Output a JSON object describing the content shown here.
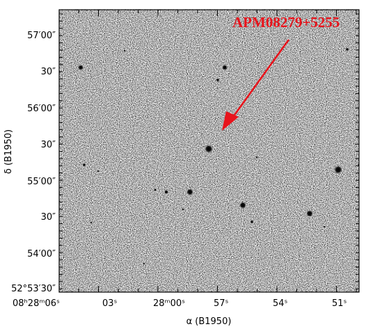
{
  "figure": {
    "target_label": "APM08279+5255",
    "x_axis_title": "α (B1950)",
    "y_axis_title": "δ (B1950)",
    "x_ticks": [
      {
        "label": "08ʰ28ᵐ06ˢ"
      },
      {
        "label": "03ˢ"
      },
      {
        "label": "28ᵐ00ˢ"
      },
      {
        "label": "57ˢ"
      },
      {
        "label": "54ˢ"
      },
      {
        "label": "51ˢ"
      }
    ],
    "y_ticks": [
      {
        "label": "57′00″"
      },
      {
        "label": "30″"
      },
      {
        "label": "56′00″"
      },
      {
        "label": "30″"
      },
      {
        "label": "55′00″"
      },
      {
        "label": "30″"
      },
      {
        "label": "54′00″"
      },
      {
        "label": "52°53′30″"
      }
    ],
    "colors": {
      "arrow": "#e8141c",
      "label": "#e8141c",
      "frame": "#000000",
      "sky_background": "#e6e6e6"
    }
  }
}
